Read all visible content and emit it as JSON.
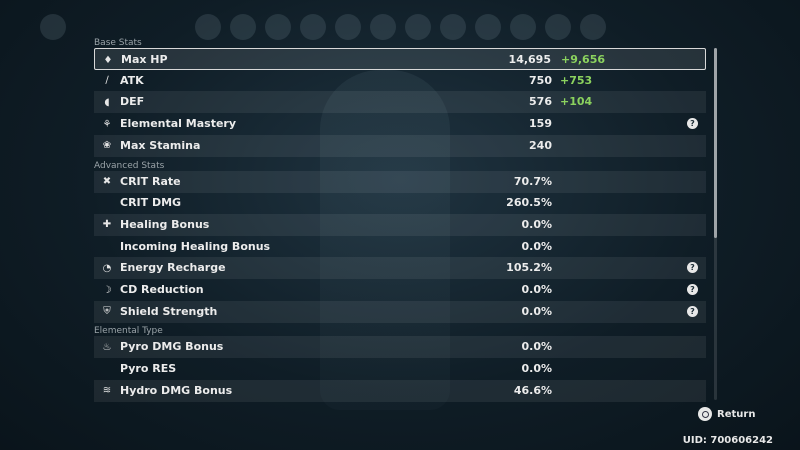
{
  "sections": [
    {
      "header": "Base Stats",
      "rows": [
        {
          "icon": "drop-icon",
          "name": "Max HP",
          "value": "14,695",
          "bonus": "+9,656",
          "selected": true
        },
        {
          "icon": "sword-icon",
          "name": "ATK",
          "value": "750",
          "bonus": "+753"
        },
        {
          "icon": "shield-icon",
          "name": "DEF",
          "value": "576",
          "bonus": "+104"
        },
        {
          "icon": "elemental-mastery-icon",
          "name": "Elemental Mastery",
          "value": "159",
          "help": true
        },
        {
          "icon": "stamina-icon",
          "name": "Max Stamina",
          "value": "240"
        }
      ]
    },
    {
      "header": "Advanced Stats",
      "rows": [
        {
          "icon": "crit-icon",
          "name": "CRIT Rate",
          "value": "70.7%"
        },
        {
          "icon": "",
          "name": "CRIT DMG",
          "value": "260.5%"
        },
        {
          "icon": "plus-icon",
          "name": "Healing Bonus",
          "value": "0.0%"
        },
        {
          "icon": "",
          "name": "Incoming Healing Bonus",
          "value": "0.0%"
        },
        {
          "icon": "energy-icon",
          "name": "Energy Recharge",
          "value": "105.2%",
          "help": true
        },
        {
          "icon": "moon-icon",
          "name": "CD Reduction",
          "value": "0.0%",
          "help": true
        },
        {
          "icon": "shield-strength-icon",
          "name": "Shield Strength",
          "value": "0.0%",
          "help": true
        }
      ]
    },
    {
      "header": "Elemental Type",
      "rows": [
        {
          "icon": "pyro-icon",
          "name": "Pyro DMG Bonus",
          "value": "0.0%"
        },
        {
          "icon": "",
          "name": "Pyro RES",
          "value": "0.0%"
        },
        {
          "icon": "hydro-icon",
          "name": "Hydro DMG Bonus",
          "value": "46.6%"
        }
      ]
    }
  ],
  "help_glyph": "?",
  "footer": {
    "return_label": "Return",
    "uid": "UID: 700606242"
  },
  "colors": {
    "bonus": "#8bd25e",
    "row_stripe": "rgba(255,255,255,0.07)",
    "selected_border": "#d8d8d8"
  }
}
